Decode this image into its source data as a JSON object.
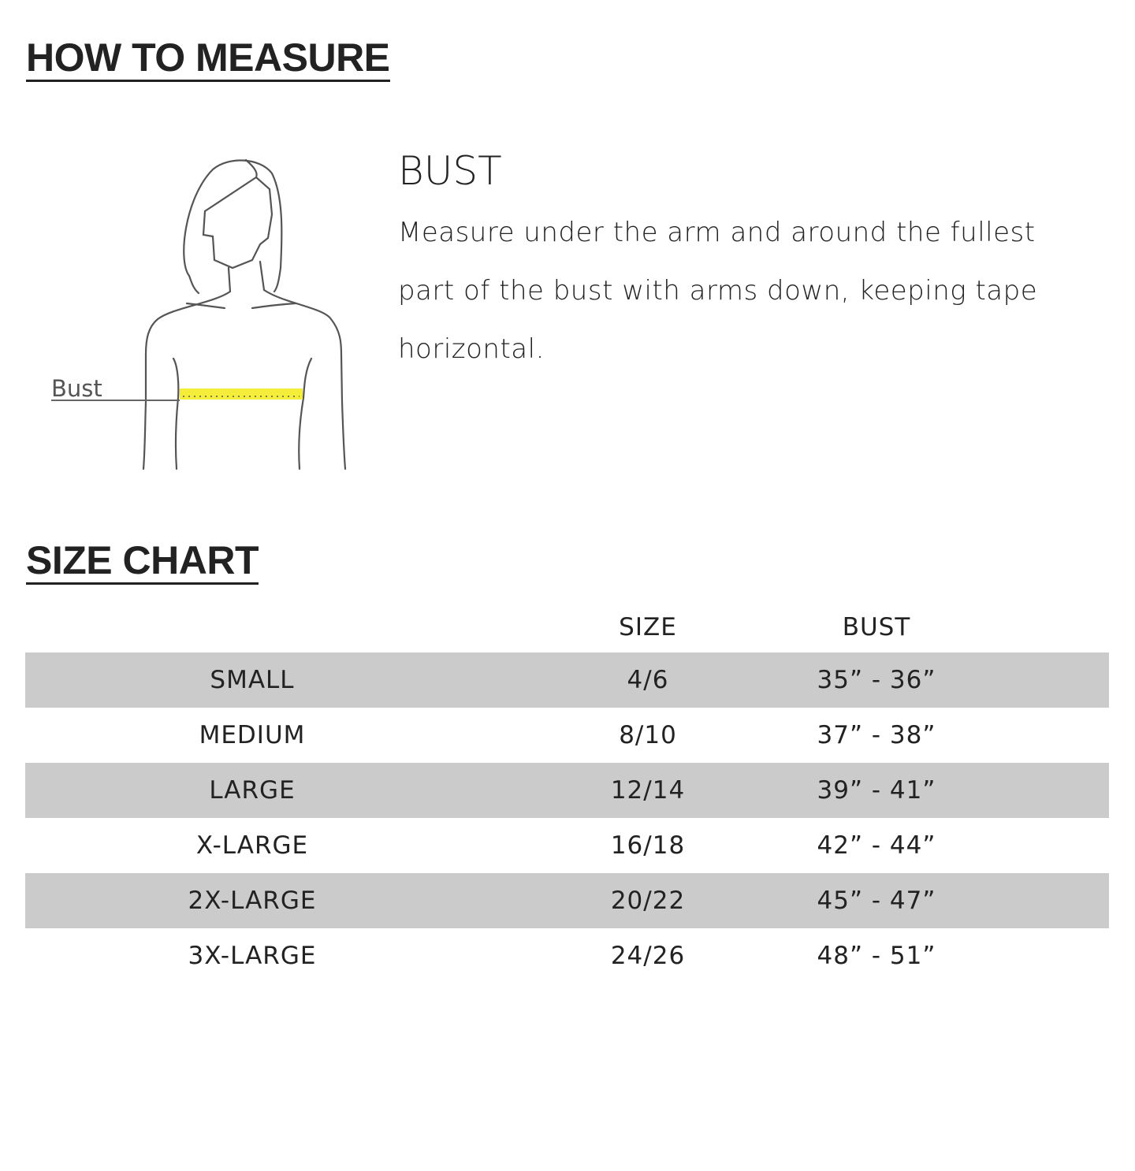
{
  "how_to_measure": {
    "heading": "HOW TO MEASURE",
    "figure_label": "Bust",
    "tape_color": "#f4ee3a",
    "title": "BUST",
    "description": "Measure under the arm and around the fullest part of the bust with arms down, keeping tape horizontal."
  },
  "size_chart": {
    "heading": "SIZE CHART",
    "columns": [
      "",
      "SIZE",
      "BUST"
    ],
    "rows": [
      {
        "label": "SMALL",
        "size": "4/6",
        "bust": "35” - 36”"
      },
      {
        "label": "MEDIUM",
        "size": "8/10",
        "bust": "37” - 38”"
      },
      {
        "label": "LARGE",
        "size": "12/14",
        "bust": "39” - 41”"
      },
      {
        "label": "X-LARGE",
        "size": "16/18",
        "bust": "42” - 44”"
      },
      {
        "label": "2X-LARGE",
        "size": "20/22",
        "bust": "45” - 47”"
      },
      {
        "label": "3X-LARGE",
        "size": "24/26",
        "bust": "48” - 51”"
      }
    ],
    "shaded_row_color": "#cbcbcb"
  }
}
